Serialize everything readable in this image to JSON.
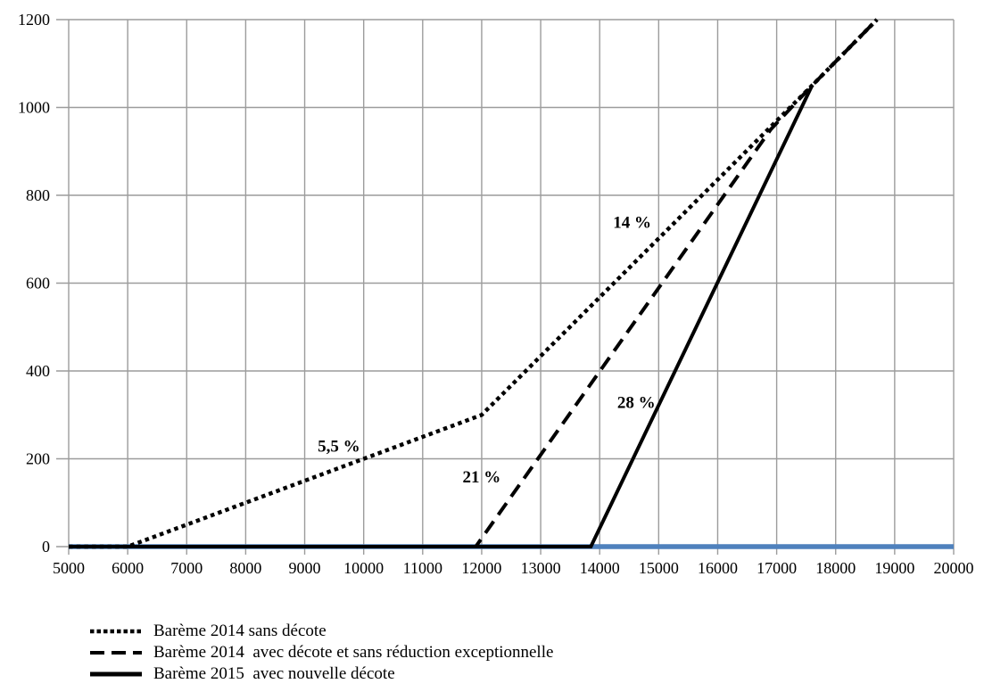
{
  "chart_data": {
    "type": "line",
    "title": "",
    "xlabel": "",
    "ylabel": "",
    "xlim": [
      5000,
      20000
    ],
    "ylim": [
      0,
      1200
    ],
    "x_ticks": [
      5000,
      6000,
      7000,
      8000,
      9000,
      10000,
      11000,
      12000,
      13000,
      14000,
      15000,
      16000,
      17000,
      18000,
      19000,
      20000
    ],
    "y_ticks": [
      0,
      200,
      400,
      600,
      800,
      1000,
      1200
    ],
    "grid": true,
    "legend_position": "bottom-left",
    "colors": {
      "series_black": "#000000",
      "series_blue": "#4F81BD",
      "gridline": "#9c9c9c"
    },
    "series": [
      {
        "name": "Barème 2014 sans décote",
        "style": "dotted",
        "color": "#000000",
        "in_legend": true,
        "points": [
          [
            5000,
            0
          ],
          [
            6000,
            0
          ],
          [
            12000,
            300
          ],
          [
            17600,
            1050
          ],
          [
            18700,
            1200
          ]
        ]
      },
      {
        "name": "Barème 2014  avec décote et sans réduction exceptionnelle",
        "style": "dashed",
        "color": "#000000",
        "in_legend": true,
        "points": [
          [
            5000,
            0
          ],
          [
            11900,
            0
          ],
          [
            16900,
            950
          ],
          [
            17600,
            1050
          ],
          [
            18700,
            1200
          ]
        ]
      },
      {
        "name": "Barème 2015  avec nouvelle décote",
        "style": "solid",
        "color": "#000000",
        "in_legend": true,
        "points": [
          [
            5000,
            0
          ],
          [
            13850,
            0
          ],
          [
            17600,
            1050
          ]
        ]
      },
      {
        "name": "",
        "style": "solid-blue",
        "color": "#4F81BD",
        "in_legend": false,
        "points": [
          [
            5000,
            0
          ],
          [
            20000,
            0
          ]
        ]
      }
    ],
    "annotations": [
      {
        "text": "5,5 %",
        "x": 9580,
        "y": 230
      },
      {
        "text": "14 %",
        "x": 14550,
        "y": 740
      },
      {
        "text": "21 %",
        "x": 12000,
        "y": 160
      },
      {
        "text": "28 %",
        "x": 14620,
        "y": 330
      }
    ]
  }
}
